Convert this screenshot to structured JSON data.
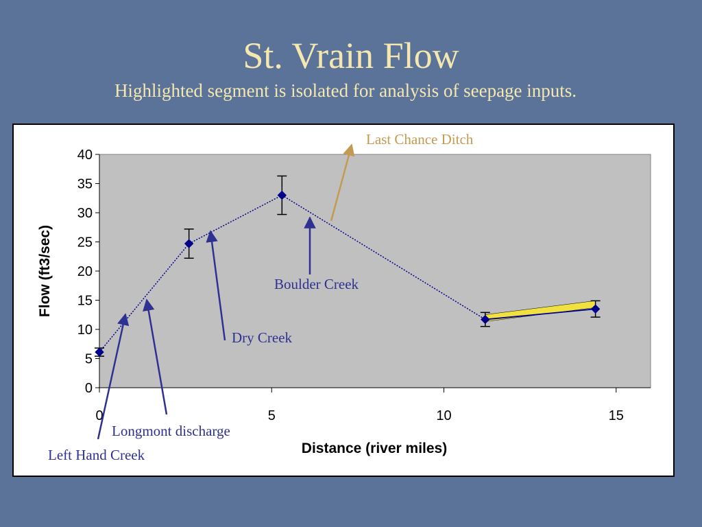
{
  "slide": {
    "title": "St. Vrain Flow",
    "subtitle": "Highlighted segment is isolated for analysis of seepage inputs."
  },
  "colors": {
    "background": "#5b7399",
    "title": "#f4e8b0",
    "plot_area": "#c0c0c0",
    "series": "#00008b",
    "highlight": "#f0e040",
    "annotation_blue": "#2e3192",
    "annotation_tan": "#c49a52"
  },
  "chart_data": {
    "type": "scatter",
    "xlabel": "Distance (river miles)",
    "ylabel": "Flow (ft3/sec)",
    "xlim": [
      0,
      16
    ],
    "ylim": [
      0,
      40
    ],
    "xticks": [
      0,
      5,
      10,
      15
    ],
    "yticks": [
      0,
      5,
      10,
      15,
      20,
      25,
      30,
      35,
      40
    ],
    "grid": false,
    "legend": "none",
    "points": [
      {
        "x": 0,
        "y": 6.1,
        "err": 0.7
      },
      {
        "x": 2.6,
        "y": 24.7,
        "err": 2.5
      },
      {
        "x": 5.3,
        "y": 33.0,
        "err": 3.3
      },
      {
        "x": 11.2,
        "y": 11.7,
        "err": 1.2
      },
      {
        "x": 14.4,
        "y": 13.5,
        "err": 1.4
      }
    ],
    "highlighted_segment": {
      "from_index": 3,
      "to_index": 4
    },
    "annotations": [
      {
        "label": "Last Chance Ditch",
        "color": "tan"
      },
      {
        "label": "Boulder Creek",
        "color": "blue"
      },
      {
        "label": "Dry Creek",
        "color": "blue"
      },
      {
        "label": "Longmont discharge",
        "color": "blue"
      },
      {
        "label": "Left Hand Creek",
        "color": "blue"
      }
    ]
  }
}
